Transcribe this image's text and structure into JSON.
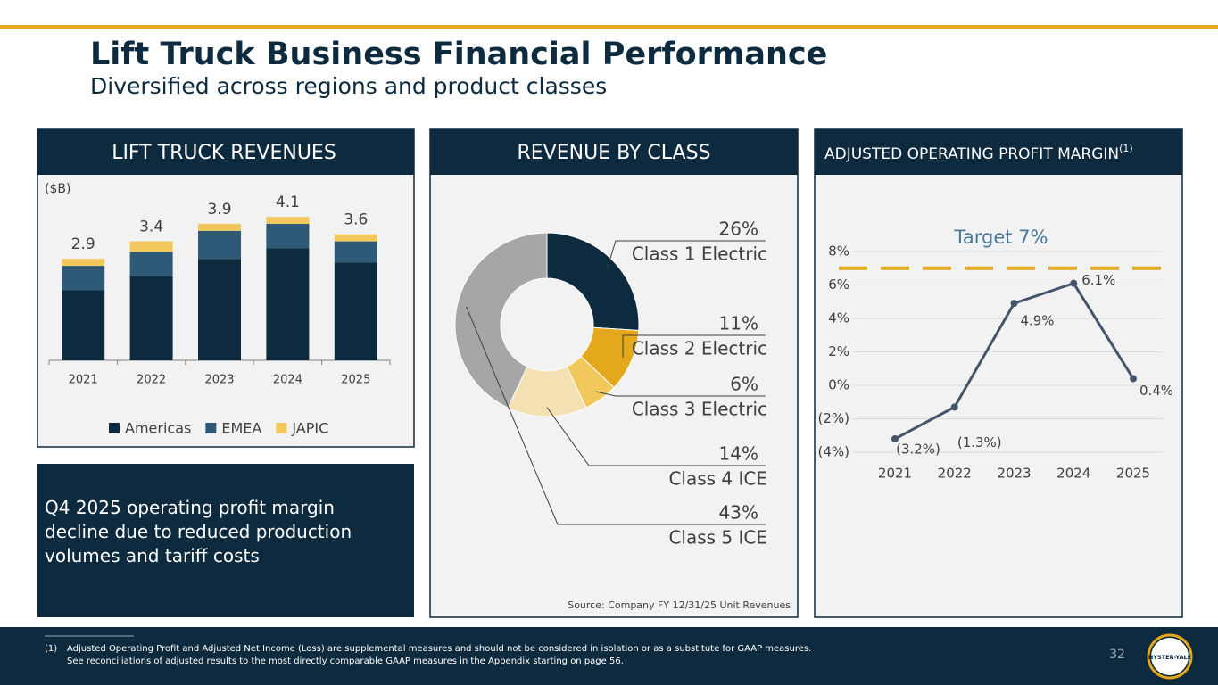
{
  "header": {
    "title": "Lift Truck Business Financial Performance",
    "subtitle": "Diversified across regions and product classes"
  },
  "chart_data": [
    {
      "type": "stacked-bar",
      "title": "LIFT TRUCK REVENUES",
      "unit_label": "($B)",
      "categories": [
        "2021",
        "2022",
        "2023",
        "2024",
        "2025"
      ],
      "series": [
        {
          "name": "Americas",
          "color": "#0d2a3f",
          "values": [
            2.0,
            2.4,
            2.9,
            3.2,
            2.8
          ]
        },
        {
          "name": "EMEA",
          "color": "#2e5a78",
          "values": [
            0.7,
            0.7,
            0.8,
            0.7,
            0.6
          ]
        },
        {
          "name": "JAPIC",
          "color": "#f2c75c",
          "values": [
            0.2,
            0.3,
            0.2,
            0.2,
            0.2
          ]
        }
      ],
      "totals": [
        2.9,
        3.4,
        3.9,
        4.1,
        3.6
      ]
    },
    {
      "type": "donut",
      "title": "REVENUE BY CLASS",
      "categories": [
        "Class 1 Electric",
        "Class 2 Electric",
        "Class 3 Electric",
        "Class 4 ICE",
        "Class 5 ICE"
      ],
      "values": [
        26,
        11,
        6,
        14,
        43
      ],
      "value_labels": [
        "26%",
        "11%",
        "6%",
        "14%",
        "43%"
      ],
      "colors": [
        "#0d2a3f",
        "#e3a81b",
        "#f2c75c",
        "#f3e0b3",
        "#a6a6a6"
      ],
      "source": "Source: Company FY 12/31/25 Unit Revenues"
    },
    {
      "type": "line",
      "title": "ADJUSTED OPERATING PROFIT MARGIN",
      "title_note": "(1)",
      "categories": [
        "2021",
        "2022",
        "2023",
        "2024",
        "2025"
      ],
      "values": [
        -3.2,
        -1.3,
        4.9,
        6.1,
        0.4
      ],
      "value_labels": [
        "(3.2%)",
        "(1.3%)",
        "4.9%",
        "6.1%",
        "0.4%"
      ],
      "color": "#44546a",
      "ylim": [
        -4,
        8
      ],
      "yticks": [
        {
          "value": -4,
          "label": "(4%)"
        },
        {
          "value": -2,
          "label": "(2%)"
        },
        {
          "value": 0,
          "label": "0%"
        },
        {
          "value": 2,
          "label": "2%"
        },
        {
          "value": 4,
          "label": "4%"
        },
        {
          "value": 6,
          "label": "6%"
        },
        {
          "value": 8,
          "label": "8%"
        }
      ],
      "grid": true,
      "target": {
        "value": 7,
        "label": "Target 7%",
        "color": "#e3a81b"
      }
    }
  ],
  "note": "Q4 2025 operating profit margin decline due to reduced production volumes and tariff costs",
  "footnote": {
    "marker": "(1)",
    "lines": [
      "Adjusted Operating Profit and Adjusted Net Income (Loss) are supplemental measures and should not be considered in isolation or as a substitute for GAAP measures.",
      "See reconciliations of adjusted results to the most directly comparable GAAP measures in the Appendix starting on page 56."
    ]
  },
  "page_number": "32",
  "logo": "HYSTER-YALE"
}
